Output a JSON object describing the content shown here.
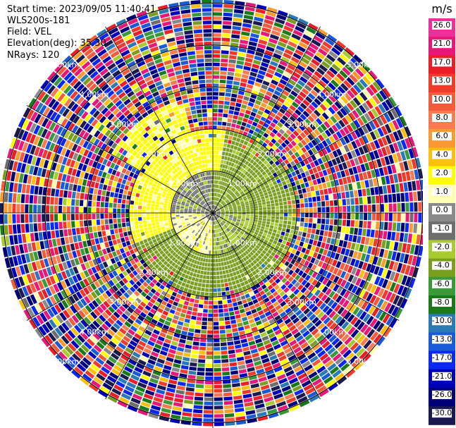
{
  "info": {
    "start_time": "Start time: 2023/09/05 11:40:41",
    "instrument": "WLS200s-181",
    "field": "Field: VEL",
    "elevation": "Elevation(deg): 35.30",
    "nrays": "NRays: 120"
  },
  "colorbar": {
    "unit": "m/s",
    "ticks": [
      "26.0",
      "21.0",
      "17.0",
      "13.0",
      "10.0",
      "8.0",
      "6.0",
      "4.0",
      "2.0",
      "1.0",
      "0.0",
      "-1.0",
      "-2.0",
      "-4.0",
      "-6.0",
      "-8.0",
      "-10.0",
      "-13.0",
      "-17.0",
      "-21.0",
      "-26.0",
      "-30.0"
    ],
    "colors": [
      "#f0309a",
      "#e8177a",
      "#ea1e28",
      "#f23a2a",
      "#f55a3a",
      "#fa7a50",
      "#fa9a30",
      "#fbbf10",
      "#ffff00",
      "#ffffb0",
      "#8a8a8a",
      "#6e6e6e",
      "#a8cc30",
      "#7a9e20",
      "#3a9a3a",
      "#1a7a1a",
      "#2a7ab8",
      "#1a5ad8",
      "#0a28f0",
      "#0000b8",
      "#000078",
      "#1a1a50"
    ]
  },
  "chart_data": {
    "type": "heatmap",
    "projection": "polar-ppi",
    "field": "VEL",
    "unit": "m/s",
    "nrays": 120,
    "range_rings_km": [
      1.0,
      2.0,
      3.0,
      4.0,
      5.0
    ],
    "ring_labels": [
      "1.00km",
      "2.00km",
      "3.00km",
      "4.00km",
      "5.00km"
    ],
    "max_range_km": 5.0,
    "value_range": [
      -30.0,
      26.0
    ],
    "zones": [
      {
        "r_km": [
          0.0,
          0.2
        ],
        "az_deg": [
          0,
          360
        ],
        "value": -0.5
      },
      {
        "r_km": [
          0.2,
          1.0
        ],
        "az_deg": [
          0,
          90
        ],
        "value": -2.5
      },
      {
        "r_km": [
          0.2,
          1.0
        ],
        "az_deg": [
          90,
          180
        ],
        "value": -1.5
      },
      {
        "r_km": [
          0.2,
          1.0
        ],
        "az_deg": [
          180,
          270
        ],
        "value": 1.5
      },
      {
        "r_km": [
          0.2,
          1.0
        ],
        "az_deg": [
          270,
          360
        ],
        "value": -0.5
      },
      {
        "r_km": [
          1.0,
          2.0
        ],
        "az_deg": [
          10,
          120
        ],
        "value": -2.5
      },
      {
        "r_km": [
          1.0,
          2.0
        ],
        "az_deg": [
          120,
          250
        ],
        "value": -3.0
      },
      {
        "r_km": [
          1.0,
          2.0
        ],
        "az_deg": [
          250,
          360
        ],
        "value": 2.5
      },
      {
        "r_km": [
          1.0,
          2.0
        ],
        "az_deg": [
          0,
          10
        ],
        "value": 2.5
      },
      {
        "r_km": [
          2.0,
          2.8
        ],
        "az_deg": [
          300,
          345
        ],
        "value": 2.5
      },
      {
        "r_km": [
          2.0,
          5.0
        ],
        "az_deg": [
          0,
          360
        ],
        "value": "noise"
      }
    ]
  }
}
